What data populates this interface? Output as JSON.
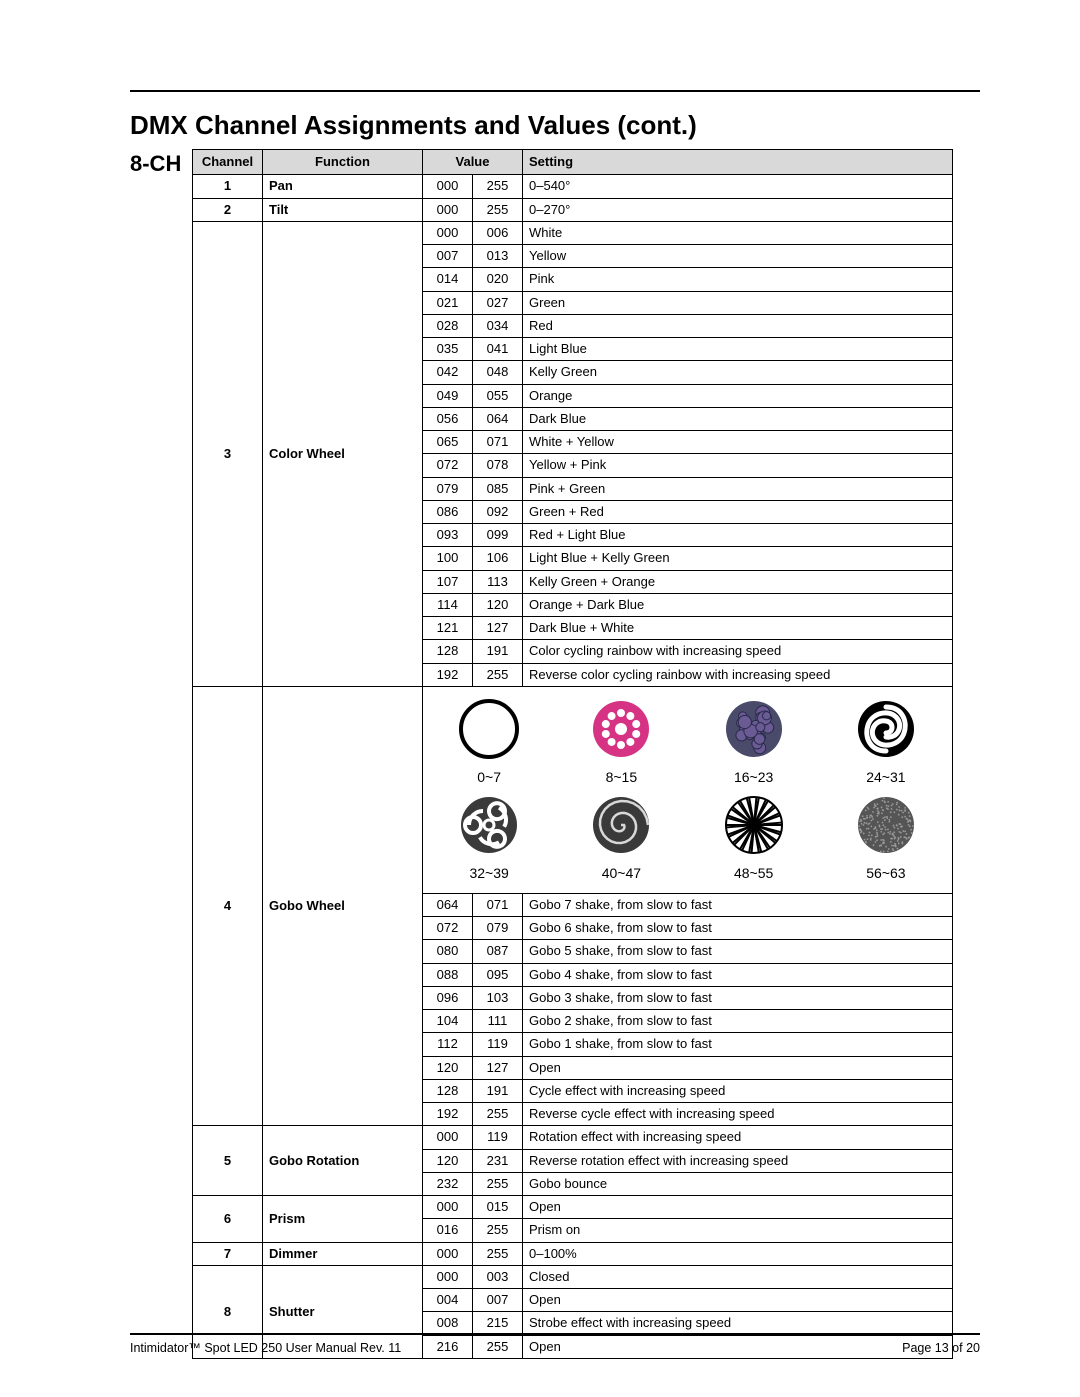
{
  "title": "DMX Channel Assignments and Values (cont.)",
  "side_label": "8-CH",
  "headers": {
    "channel": "Channel",
    "function": "Function",
    "value": "Value",
    "setting": "Setting"
  },
  "colors": {
    "header_bg": "#d9d9d9",
    "gobo_magenta": "#d63384",
    "gobo_purple": "#6b5b95",
    "gobo_dark": "#3a3a3a"
  },
  "channels": [
    {
      "ch": "1",
      "fn": "Pan",
      "rows": [
        {
          "v1": "000",
          "v2": "255",
          "s": "0–540°"
        }
      ]
    },
    {
      "ch": "2",
      "fn": "Tilt",
      "rows": [
        {
          "v1": "000",
          "v2": "255",
          "s": "0–270°"
        }
      ]
    },
    {
      "ch": "3",
      "fn": "Color Wheel",
      "rows": [
        {
          "v1": "000",
          "v2": "006",
          "s": "White"
        },
        {
          "v1": "007",
          "v2": "013",
          "s": "Yellow"
        },
        {
          "v1": "014",
          "v2": "020",
          "s": "Pink"
        },
        {
          "v1": "021",
          "v2": "027",
          "s": "Green"
        },
        {
          "v1": "028",
          "v2": "034",
          "s": "Red"
        },
        {
          "v1": "035",
          "v2": "041",
          "s": "Light Blue"
        },
        {
          "v1": "042",
          "v2": "048",
          "s": "Kelly Green"
        },
        {
          "v1": "049",
          "v2": "055",
          "s": "Orange"
        },
        {
          "v1": "056",
          "v2": "064",
          "s": "Dark Blue"
        },
        {
          "v1": "065",
          "v2": "071",
          "s": "White + Yellow"
        },
        {
          "v1": "072",
          "v2": "078",
          "s": "Yellow + Pink"
        },
        {
          "v1": "079",
          "v2": "085",
          "s": "Pink + Green"
        },
        {
          "v1": "086",
          "v2": "092",
          "s": "Green + Red"
        },
        {
          "v1": "093",
          "v2": "099",
          "s": "Red + Light Blue"
        },
        {
          "v1": "100",
          "v2": "106",
          "s": "Light Blue + Kelly Green"
        },
        {
          "v1": "107",
          "v2": "113",
          "s": "Kelly Green + Orange"
        },
        {
          "v1": "114",
          "v2": "120",
          "s": "Orange + Dark Blue"
        },
        {
          "v1": "121",
          "v2": "127",
          "s": "Dark Blue + White"
        },
        {
          "v1": "128",
          "v2": "191",
          "s": "Color cycling rainbow with increasing speed"
        },
        {
          "v1": "192",
          "v2": "255",
          "s": "Reverse color cycling rainbow with increasing speed"
        }
      ]
    },
    {
      "ch": "4",
      "fn": "Gobo Wheel",
      "gobos": [
        {
          "range": "0~7",
          "icon": "open"
        },
        {
          "range": "8~15",
          "icon": "dots"
        },
        {
          "range": "16~23",
          "icon": "cells"
        },
        {
          "range": "24~31",
          "icon": "spiral"
        },
        {
          "range": "32~39",
          "icon": "biohazard"
        },
        {
          "range": "40~47",
          "icon": "rose"
        },
        {
          "range": "48~55",
          "icon": "net"
        },
        {
          "range": "56~63",
          "icon": "stipple"
        }
      ],
      "rows": [
        {
          "v1": "064",
          "v2": "071",
          "s": "Gobo 7 shake, from slow to fast"
        },
        {
          "v1": "072",
          "v2": "079",
          "s": "Gobo 6 shake, from slow to fast"
        },
        {
          "v1": "080",
          "v2": "087",
          "s": "Gobo 5 shake, from slow to fast"
        },
        {
          "v1": "088",
          "v2": "095",
          "s": "Gobo 4 shake, from slow to fast"
        },
        {
          "v1": "096",
          "v2": "103",
          "s": "Gobo 3 shake, from slow to fast"
        },
        {
          "v1": "104",
          "v2": "111",
          "s": "Gobo 2 shake, from slow to fast"
        },
        {
          "v1": "112",
          "v2": "119",
          "s": "Gobo 1 shake, from slow to fast"
        },
        {
          "v1": "120",
          "v2": "127",
          "s": "Open"
        },
        {
          "v1": "128",
          "v2": "191",
          "s": "Cycle effect with increasing speed"
        },
        {
          "v1": "192",
          "v2": "255",
          "s": "Reverse cycle effect with increasing speed"
        }
      ]
    },
    {
      "ch": "5",
      "fn": "Gobo Rotation",
      "rows": [
        {
          "v1": "000",
          "v2": "119",
          "s": "Rotation effect with increasing speed"
        },
        {
          "v1": "120",
          "v2": "231",
          "s": "Reverse rotation effect with increasing speed"
        },
        {
          "v1": "232",
          "v2": "255",
          "s": "Gobo bounce"
        }
      ]
    },
    {
      "ch": "6",
      "fn": "Prism",
      "rows": [
        {
          "v1": "000",
          "v2": "015",
          "s": "Open"
        },
        {
          "v1": "016",
          "v2": "255",
          "s": "Prism on"
        }
      ]
    },
    {
      "ch": "7",
      "fn": "Dimmer",
      "rows": [
        {
          "v1": "000",
          "v2": "255",
          "s": "0–100%"
        }
      ]
    },
    {
      "ch": "8",
      "fn": "Shutter",
      "rows": [
        {
          "v1": "000",
          "v2": "003",
          "s": "Closed"
        },
        {
          "v1": "004",
          "v2": "007",
          "s": "Open"
        },
        {
          "v1": "008",
          "v2": "215",
          "s": "Strobe effect with increasing speed"
        },
        {
          "v1": "216",
          "v2": "255",
          "s": "Open"
        }
      ]
    }
  ],
  "footer": {
    "left": "Intimidator™ Spot LED 250 User Manual Rev. 11",
    "right": "Page 13 of 20"
  }
}
